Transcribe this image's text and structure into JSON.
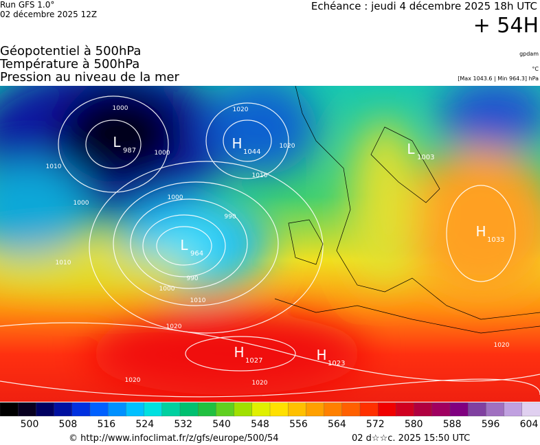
{
  "header": {
    "run": "Run GFS 1.0°",
    "run_date": "02 décembre 2025 12Z",
    "valid": "Echéance : jeudi 4 décembre 2025 18h UTC",
    "lead": "+ 54H"
  },
  "fields": [
    "Géopotentiel à 500hPa",
    "Température à 500hPa",
    "Pression au niveau de la mer"
  ],
  "units": {
    "geopotential": "gpdam",
    "temperature": "°C",
    "pressure": "[Max 1043.6 | Min 964.3] hPa"
  },
  "centers": [
    {
      "type": "L",
      "value": 987
    },
    {
      "type": "H",
      "value": 1044
    },
    {
      "type": "L",
      "value": 1003
    },
    {
      "type": "H",
      "value": 1033
    },
    {
      "type": "L",
      "value": 964
    },
    {
      "type": "H",
      "value": 1027
    },
    {
      "type": "H",
      "value": 1023
    }
  ],
  "isobar_labels": [
    1000,
    1000,
    1000,
    1000,
    1010,
    1010,
    1010,
    1010,
    1020,
    1020,
    1020,
    1020,
    1020,
    990,
    990,
    1000,
    1020
  ],
  "colorbar": {
    "ticks": [
      500,
      508,
      516,
      524,
      532,
      540,
      548,
      556,
      564,
      572,
      580,
      588,
      596,
      604
    ]
  },
  "footer": {
    "source": "© http://www.infoclimat.fr/z/gfs/europe/500/54",
    "generated": "02 d☆☆c. 2025 15:50 UTC"
  }
}
